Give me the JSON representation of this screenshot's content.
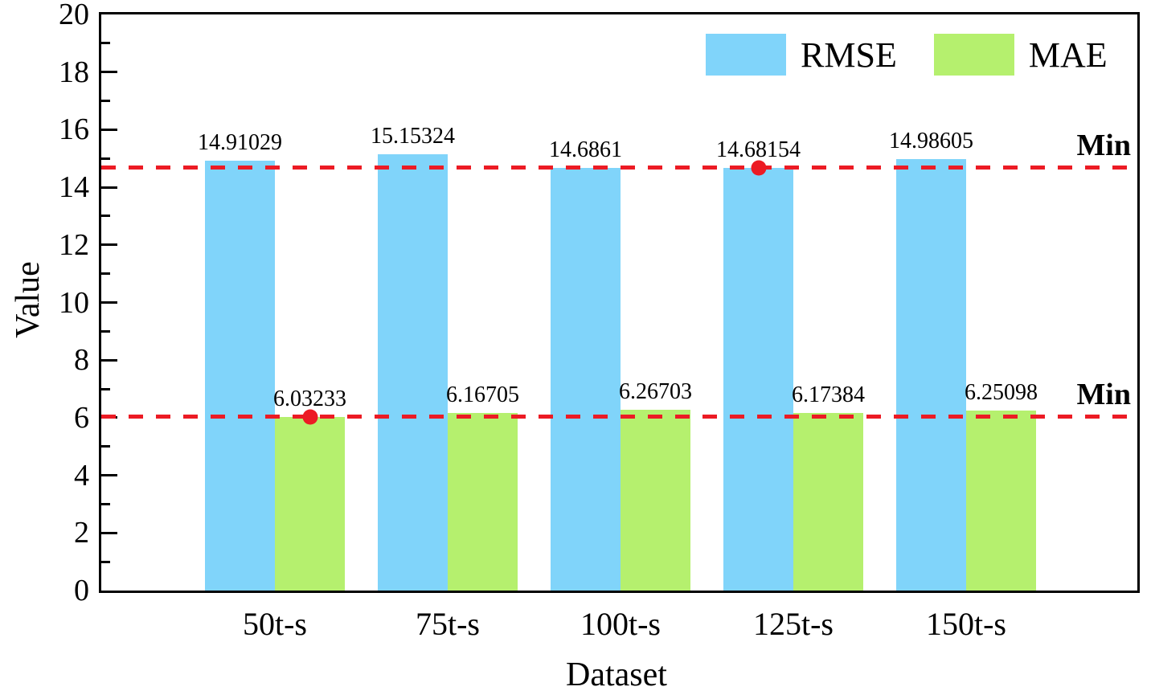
{
  "chart_data": {
    "type": "bar",
    "title": "",
    "xlabel": "Dataset",
    "ylabel": "Value",
    "categories": [
      "50t-s",
      "75t-s",
      "100t-s",
      "125t-s",
      "150t-s"
    ],
    "series": [
      {
        "name": "RMSE",
        "color": "#80D4FA",
        "values": [
          14.91029,
          15.15324,
          14.6861,
          14.68154,
          14.98605
        ],
        "value_labels": [
          "14.91029",
          "15.15324",
          "14.6861",
          "14.68154",
          "14.98605"
        ],
        "min_value": 14.68154,
        "min_index": 3
      },
      {
        "name": "MAE",
        "color": "#B5F06E",
        "values": [
          6.03233,
          6.16705,
          6.26703,
          6.17384,
          6.25098
        ],
        "value_labels": [
          "6.03233",
          "6.16705",
          "6.26703",
          "6.17384",
          "6.25098"
        ],
        "min_value": 6.03233,
        "min_index": 0
      }
    ],
    "ylim": [
      0,
      20
    ],
    "yticks": [
      0,
      2,
      4,
      6,
      8,
      10,
      12,
      14,
      16,
      18,
      20
    ],
    "minor_ytick_step": 1,
    "min_line_label": "Min",
    "min_line_color": "#EC1B24",
    "min_dot_color": "#EC1B24",
    "legend_position": "top-right",
    "grid": false
  }
}
